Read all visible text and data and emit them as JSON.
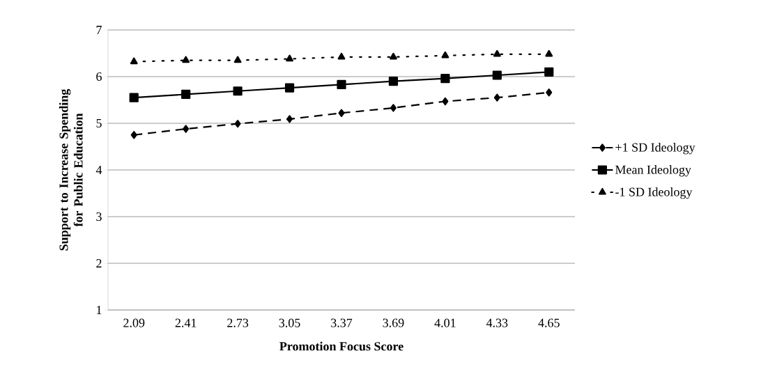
{
  "chart_data": {
    "type": "line",
    "xlabel": "Promotion Focus Score",
    "ylabel": "Support to Increase Spending for Public Education",
    "categories": [
      "2.09",
      "2.41",
      "2.73",
      "3.05",
      "3.37",
      "3.69",
      "4.01",
      "4.33",
      "4.65"
    ],
    "series": [
      {
        "name": "+1 SD  Ideology",
        "color": "#000000",
        "marker": "diamond",
        "line_style": "dashed",
        "values": [
          4.75,
          4.88,
          4.99,
          5.09,
          5.22,
          5.33,
          5.47,
          5.55,
          5.66
        ]
      },
      {
        "name": "Mean Ideology",
        "color": "#000000",
        "marker": "square",
        "line_style": "solid",
        "values": [
          5.55,
          5.62,
          5.69,
          5.76,
          5.83,
          5.9,
          5.96,
          6.03,
          6.1
        ]
      },
      {
        "name": "-1 SD Ideology",
        "color": "#000000",
        "marker": "triangle",
        "line_style": "dotted",
        "values": [
          6.32,
          6.35,
          6.35,
          6.38,
          6.42,
          6.42,
          6.45,
          6.48,
          6.48
        ]
      }
    ],
    "ylim": [
      1,
      7
    ],
    "yticks": [
      1,
      2,
      3,
      4,
      5,
      6,
      7
    ],
    "grid": "y",
    "legend": "right"
  }
}
